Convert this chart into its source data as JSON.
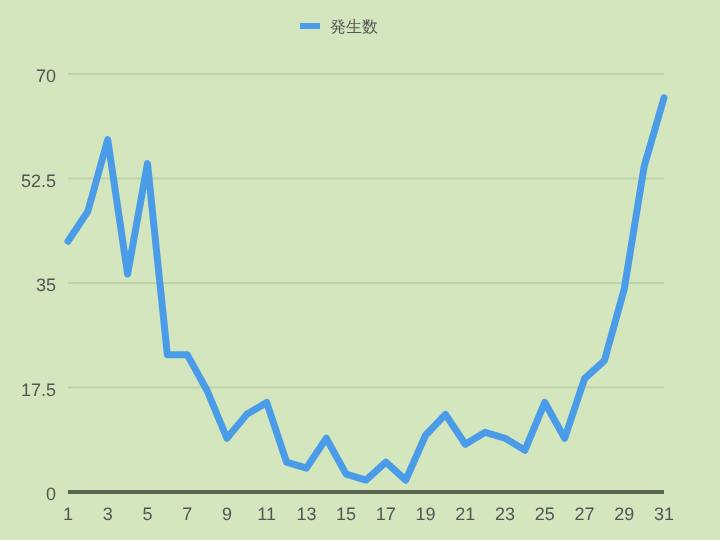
{
  "chart_data": {
    "type": "line",
    "x": [
      1,
      2,
      3,
      4,
      5,
      6,
      7,
      8,
      9,
      10,
      11,
      12,
      13,
      14,
      15,
      16,
      17,
      18,
      19,
      20,
      21,
      22,
      23,
      24,
      25,
      26,
      27,
      28,
      29,
      30,
      31
    ],
    "series": [
      {
        "name": "発生数",
        "color": "#4a9be8",
        "values": [
          42,
          47,
          59,
          36.5,
          55,
          23,
          23,
          17,
          9,
          13,
          15,
          5,
          4,
          9,
          3,
          2,
          5,
          2,
          9.5,
          13,
          8,
          10,
          9,
          7,
          15,
          9,
          19,
          22,
          34,
          54.5,
          66
        ]
      }
    ],
    "xlim": [
      1,
      31
    ],
    "xticks": [
      1,
      3,
      5,
      7,
      9,
      11,
      13,
      15,
      17,
      19,
      21,
      23,
      25,
      27,
      29,
      31
    ],
    "ylim": [
      0,
      70
    ],
    "yticks": [
      0,
      17.5,
      35,
      52.5,
      70
    ],
    "grid": "y",
    "legend": "top",
    "marker": "none",
    "line_style": "solid"
  }
}
